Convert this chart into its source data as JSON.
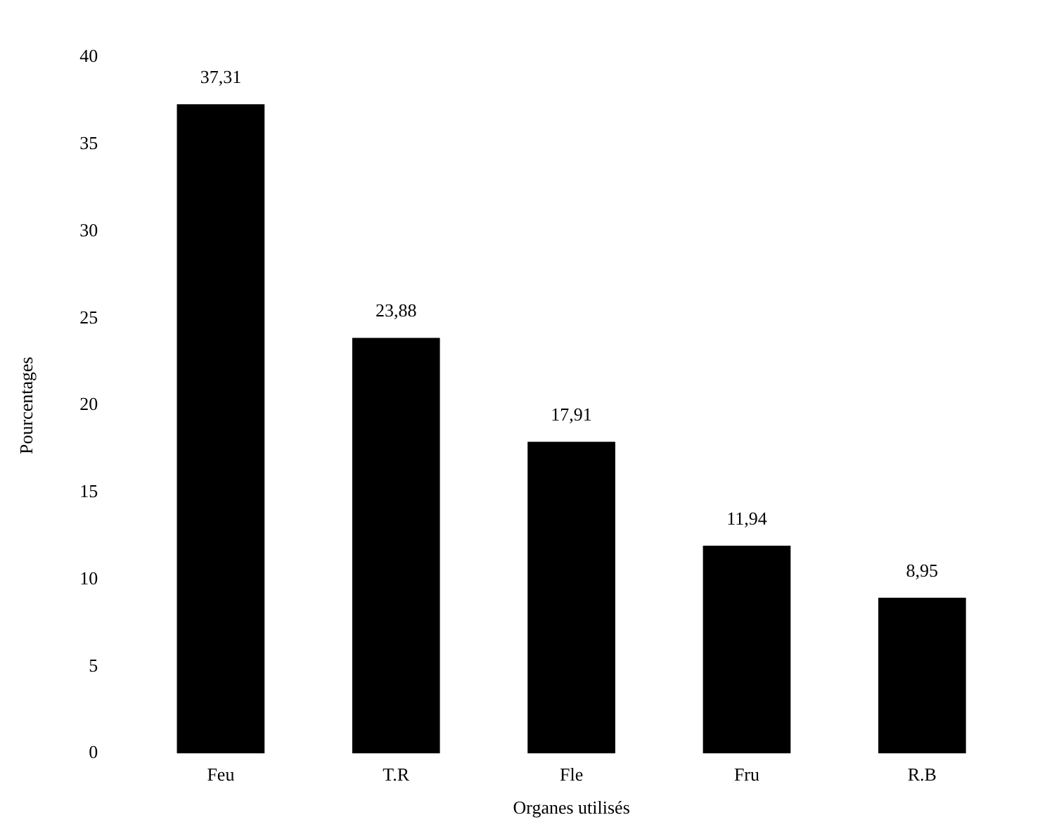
{
  "chart_data": {
    "type": "bar",
    "xlabel": "Organes utilisés",
    "ylabel": "Pourcentages",
    "categories": [
      "Feu",
      "T.R",
      "Fle",
      "Fru",
      "R.B"
    ],
    "values": [
      37.31,
      23.88,
      17.91,
      11.94,
      8.95
    ],
    "value_labels": [
      "37,31",
      "23,88",
      "17,91",
      "11,94",
      "8,95"
    ],
    "color": "#000000",
    "ylim": [
      0,
      40
    ],
    "yticks": [
      0,
      5,
      10,
      15,
      20,
      25,
      30,
      35,
      40
    ],
    "grid": false,
    "legend": false
  }
}
